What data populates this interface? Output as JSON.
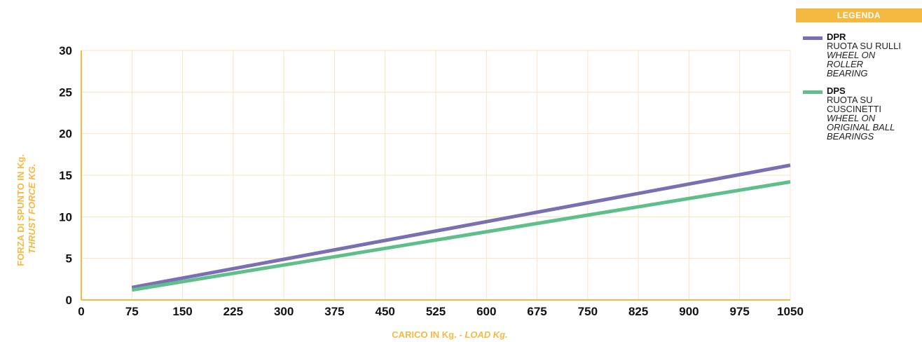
{
  "chart_data": {
    "type": "line",
    "title": "",
    "xlabel": "CARICO IN Kg.",
    "xlabel_separator": " - ",
    "xlabel_italic": "LOAD Kg.",
    "ylabel": "FORZA DI SPUNTO IN Kg.",
    "ylabel_italic": "THRUST FORCE KG.",
    "x_ticks": [
      "0",
      "75",
      "150",
      "225",
      "300",
      "375",
      "450",
      "525",
      "600",
      "675",
      "750",
      "825",
      "900",
      "975",
      "1050"
    ],
    "y_ticks": [
      "0",
      "5",
      "10",
      "15",
      "20",
      "25",
      "30"
    ],
    "xlim": [
      0,
      1050
    ],
    "ylim": [
      0,
      30
    ],
    "grid": true,
    "legend_position": "right",
    "series": [
      {
        "name": "DPR",
        "color": "#7a6fb3",
        "x": [
          75,
          1050
        ],
        "y": [
          1.5,
          16.2
        ]
      },
      {
        "name": "DPS",
        "color": "#5fbf8a",
        "x": [
          75,
          1050
        ],
        "y": [
          1.2,
          14.2
        ]
      }
    ]
  },
  "legend": {
    "title": "LEGENDA",
    "items": [
      {
        "name": "DPR",
        "color": "#7a6fb3",
        "lines": [
          "RUOTA SU RULLI"
        ],
        "italic_lines": [
          "WHEEL ON",
          "ROLLER",
          "BEARING"
        ]
      },
      {
        "name": "DPS",
        "color": "#5fbf8a",
        "lines": [
          "RUOTA SU",
          "CUSCINETTI"
        ],
        "italic_lines": [
          "WHEEL ON",
          "ORIGINAL BALL",
          "BEARINGS"
        ]
      }
    ]
  }
}
